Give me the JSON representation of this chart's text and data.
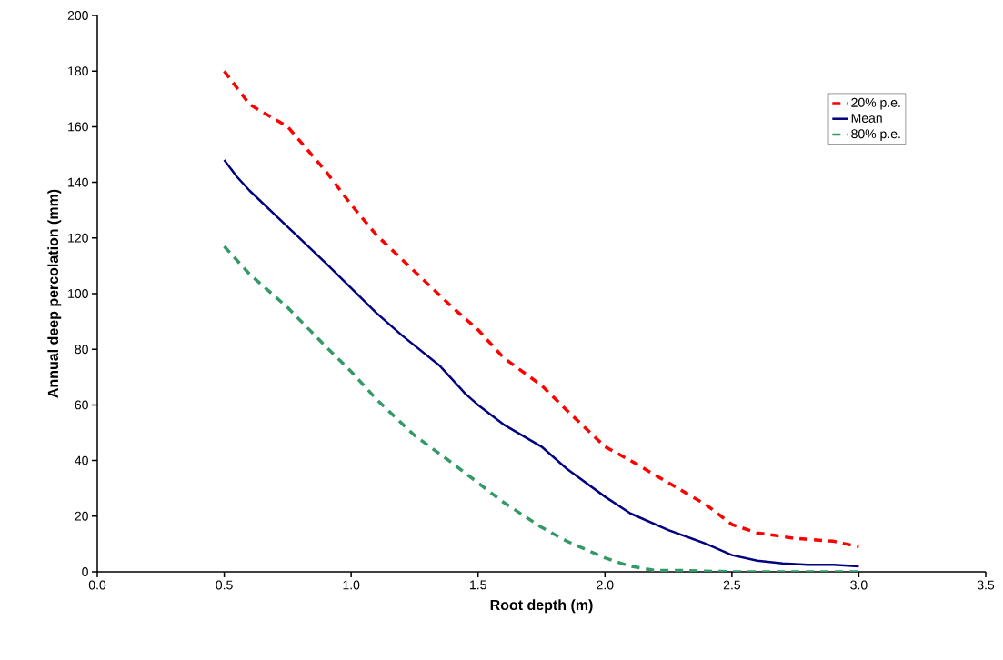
{
  "chart_data": {
    "type": "line",
    "xlabel": "Root depth (m)",
    "ylabel": "Annual deep percolation (mm)",
    "xlim": [
      0,
      3.5
    ],
    "xticks": [
      {
        "value": 0,
        "label": "0.0"
      },
      {
        "value": 0.5,
        "label": "0.5"
      },
      {
        "value": 1,
        "label": "1.0"
      },
      {
        "value": 1.5,
        "label": "1.5"
      },
      {
        "value": 2,
        "label": "2.0"
      },
      {
        "value": 2.5,
        "label": "2.5"
      },
      {
        "value": 3,
        "label": "3.0"
      },
      {
        "value": 3.5,
        "label": "3.5"
      }
    ],
    "ylim": [
      0,
      200
    ],
    "yticks": [
      0,
      20,
      40,
      60,
      80,
      100,
      120,
      140,
      160,
      180,
      200
    ],
    "grid": false,
    "legend": "top right",
    "series": [
      {
        "name": "20% p.e.",
        "color": "#ff0000",
        "line_style": "dashed",
        "x": [
          0.5,
          0.6,
          0.75,
          0.9,
          1.0,
          1.1,
          1.25,
          1.4,
          1.5,
          1.6,
          1.75,
          1.85,
          2.0,
          2.1,
          2.25,
          2.4,
          2.5,
          2.6,
          2.75,
          2.9,
          3.0
        ],
        "values": [
          180,
          168,
          160,
          144,
          132,
          121,
          108,
          95,
          87,
          77,
          67,
          58,
          45,
          40,
          32,
          24,
          17,
          14,
          12,
          11,
          9
        ]
      },
      {
        "name": "Mean",
        "color": "#000080",
        "line_style": "solid",
        "x": [
          0.5,
          0.55,
          0.6,
          0.75,
          0.9,
          1.0,
          1.1,
          1.2,
          1.35,
          1.45,
          1.5,
          1.6,
          1.75,
          1.85,
          2.0,
          2.1,
          2.25,
          2.4,
          2.5,
          2.6,
          2.7,
          2.8,
          2.9,
          3.0
        ],
        "values": [
          148,
          142,
          137,
          124,
          111,
          102,
          93,
          85,
          74,
          64,
          60,
          53,
          45,
          37,
          27,
          21,
          15,
          10,
          6,
          4,
          3,
          2.5,
          2.5,
          2
        ]
      },
      {
        "name": "80% p.e.",
        "color": "#339966",
        "line_style": "dashed",
        "x": [
          0.5,
          0.6,
          0.75,
          0.9,
          1.0,
          1.1,
          1.25,
          1.4,
          1.5,
          1.6,
          1.75,
          1.85,
          2.0,
          2.1,
          2.2,
          2.3,
          2.5,
          2.9,
          3.0
        ],
        "values": [
          117,
          107,
          95,
          81,
          72,
          62,
          49,
          39,
          32,
          25,
          16,
          11,
          5,
          2,
          0.5,
          0.5,
          0,
          0,
          0
        ]
      }
    ]
  }
}
